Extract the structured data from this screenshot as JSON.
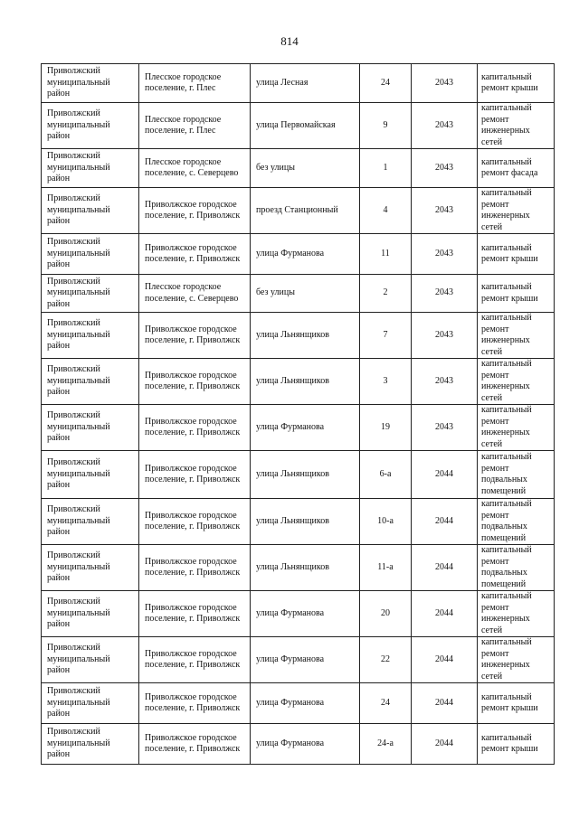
{
  "page_number": "814",
  "rows": [
    {
      "district": "Приволжский муниципальный район",
      "settlement": "Плесское городское поселение, г. Плес",
      "street": "улица Лесная",
      "house": "24",
      "year": "2043",
      "work": "капитальный ремонт крыши"
    },
    {
      "district": "Приволжский муниципальный район",
      "settlement": "Плесское городское поселение, г. Плес",
      "street": "улица Первомайская",
      "house": "9",
      "year": "2043",
      "work": "капитальный ремонт инженерных сетей"
    },
    {
      "district": "Приволжский муниципальный район",
      "settlement": "Плесское городское поселение, с. Северцево",
      "street": "без улицы",
      "house": "1",
      "year": "2043",
      "work": "капитальный ремонт фасада"
    },
    {
      "district": "Приволжский муниципальный район",
      "settlement": "Приволжское городское поселение, г. Приволжск",
      "street": "проезд Станционный",
      "house": "4",
      "year": "2043",
      "work": "капитальный ремонт инженерных сетей"
    },
    {
      "district": "Приволжский муниципальный район",
      "settlement": "Приволжское городское поселение, г. Приволжск",
      "street": "улица Фурманова",
      "house": "11",
      "year": "2043",
      "work": "капитальный ремонт крыши"
    },
    {
      "district": "Приволжский муниципальный район",
      "settlement": "Плесское городское поселение, с. Северцево",
      "street": "без улицы",
      "house": "2",
      "year": "2043",
      "work": "капитальный ремонт крыши"
    },
    {
      "district": "Приволжский муниципальный район",
      "settlement": "Приволжское городское поселение, г. Приволжск",
      "street": "улица Льнянщиков",
      "house": "7",
      "year": "2043",
      "work": "капитальный ремонт инженерных сетей"
    },
    {
      "district": "Приволжский муниципальный район",
      "settlement": "Приволжское городское поселение, г. Приволжск",
      "street": "улица Льнянщиков",
      "house": "3",
      "year": "2043",
      "work": "капитальный ремонт инженерных сетей"
    },
    {
      "district": "Приволжский муниципальный район",
      "settlement": "Приволжское городское поселение, г. Приволжск",
      "street": "улица Фурманова",
      "house": "19",
      "year": "2043",
      "work": "капитальный ремонт инженерных сетей"
    },
    {
      "district": "Приволжский муниципальный район",
      "settlement": "Приволжское городское поселение, г. Приволжск",
      "street": "улица Льнянщиков",
      "house": "6-а",
      "year": "2044",
      "work": "капитальный ремонт подвальных помещений"
    },
    {
      "district": "Приволжский муниципальный район",
      "settlement": "Приволжское городское поселение, г. Приволжск",
      "street": "улица Льнянщиков",
      "house": "10-а",
      "year": "2044",
      "work": "капитальный ремонт подвальных помещений"
    },
    {
      "district": "Приволжский муниципальный район",
      "settlement": "Приволжское городское поселение, г. Приволжск",
      "street": "улица Льнянщиков",
      "house": "11-а",
      "year": "2044",
      "work": "капитальный ремонт подвальных помещений"
    },
    {
      "district": "Приволжский муниципальный район",
      "settlement": "Приволжское городское поселение, г. Приволжск",
      "street": "улица Фурманова",
      "house": "20",
      "year": "2044",
      "work": "капитальный ремонт инженерных сетей"
    },
    {
      "district": "Приволжский муниципальный район",
      "settlement": "Приволжское городское поселение, г. Приволжск",
      "street": "улица Фурманова",
      "house": "22",
      "year": "2044",
      "work": "капитальный ремонт инженерных сетей"
    },
    {
      "district": "Приволжский муниципальный район",
      "settlement": "Приволжское городское поселение, г. Приволжск",
      "street": "улица Фурманова",
      "house": "24",
      "year": "2044",
      "work": "капитальный ремонт крыши"
    },
    {
      "district": "Приволжский муниципальный район",
      "settlement": "Приволжское городское поселение, г. Приволжск",
      "street": "улица Фурманова",
      "house": "24-а",
      "year": "2044",
      "work": "капитальный ремонт крыши"
    }
  ]
}
